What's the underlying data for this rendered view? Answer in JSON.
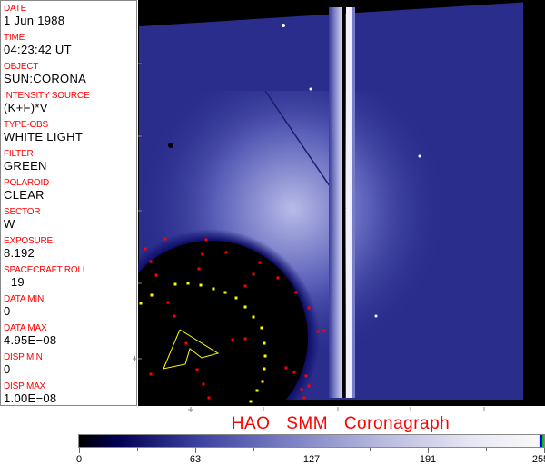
{
  "fields": [
    {
      "label": "DATE",
      "value": "1 Jun 1988"
    },
    {
      "label": "TIME",
      "value": "04:23:42 UT"
    },
    {
      "label": "OBJECT",
      "value": "SUN:CORONA"
    },
    {
      "label": "INTENSITY SOURCE",
      "value": "(K+F)*V"
    },
    {
      "label": "TYPE-OBS",
      "value": "WHITE LIGHT"
    },
    {
      "label": "FILTER",
      "value": "GREEN"
    },
    {
      "label": "POLAROID",
      "value": "CLEAR"
    },
    {
      "label": "SECTOR",
      "value": "W"
    },
    {
      "label": "EXPOSURE",
      "value": "8.192"
    },
    {
      "label": "SPACECRAFT ROLL",
      "value": "−19"
    },
    {
      "label": "DATA MIN",
      "value": "0"
    },
    {
      "label": "DATA MAX",
      "value": "4.95E−08"
    },
    {
      "label": "DISP MIN",
      "value": "0"
    },
    {
      "label": "DISP MAX",
      "value": "1.00E−08"
    }
  ],
  "title": "HAO  SMM Coronagraph",
  "colorbar": {
    "ticks": [
      "0",
      "63",
      "127",
      "191",
      "255"
    ],
    "min": 0,
    "max": 255
  },
  "colors": {
    "label": "#ff0000",
    "image_blue": "#2a2d8c",
    "overlay_yellow": "#ffff00",
    "overlay_red": "#ff0000"
  }
}
